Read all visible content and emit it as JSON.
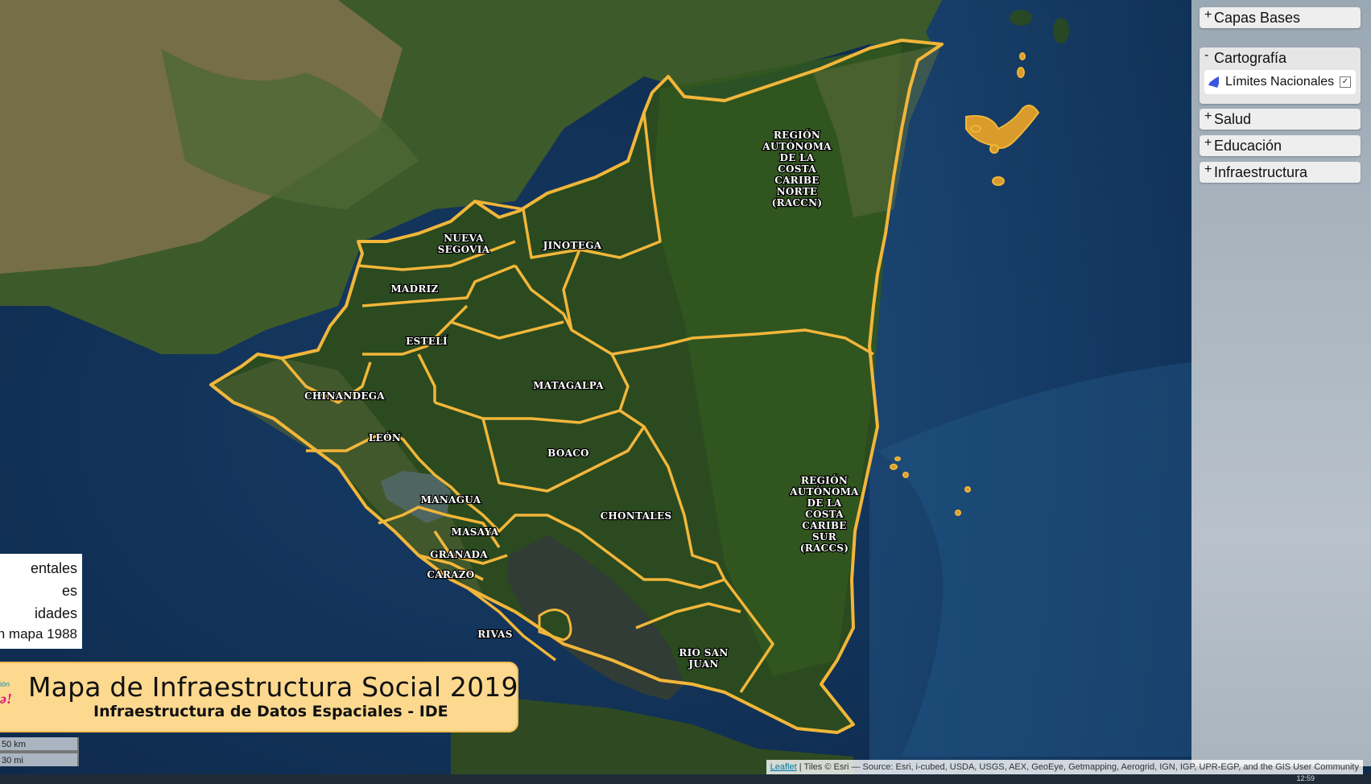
{
  "map": {
    "departments": [
      {
        "id": "raccn",
        "lines": [
          "REGIÓN",
          "AUTÓNOMA",
          "DE LA",
          "COSTA",
          "CARIBE",
          "NORTE",
          "(RACCN)"
        ]
      },
      {
        "id": "raccs",
        "lines": [
          "REGIÓN",
          "AUTÓNOMA",
          "DE LA",
          "COSTA",
          "CARIBE",
          "SUR",
          "(RACCS)"
        ]
      },
      {
        "id": "nueva-segovia",
        "lines": [
          "NUEVA",
          "SEGOVIA"
        ]
      },
      {
        "id": "jinotega",
        "lines": [
          "JINOTEGA"
        ]
      },
      {
        "id": "madriz",
        "lines": [
          "MADRIZ"
        ]
      },
      {
        "id": "esteli",
        "lines": [
          "ESTELÍ"
        ]
      },
      {
        "id": "chinandega",
        "lines": [
          "CHINANDEGA"
        ]
      },
      {
        "id": "matagalpa",
        "lines": [
          "MATAGALPA"
        ]
      },
      {
        "id": "leon",
        "lines": [
          "LEÓN"
        ]
      },
      {
        "id": "boaco",
        "lines": [
          "BOACO"
        ]
      },
      {
        "id": "managua",
        "lines": [
          "MANAGUA"
        ]
      },
      {
        "id": "chontales",
        "lines": [
          "CHONTALES"
        ]
      },
      {
        "id": "masaya",
        "lines": [
          "MASAYA"
        ]
      },
      {
        "id": "granada",
        "lines": [
          "GRANADA"
        ]
      },
      {
        "id": "carazo",
        "lines": [
          "CARAZO"
        ]
      },
      {
        "id": "rivas",
        "lines": [
          "RIVAS"
        ]
      },
      {
        "id": "rio-san-juan",
        "lines": [
          "RIO SAN",
          "JUAN"
        ]
      }
    ],
    "boundary_color": "#f2b63a",
    "label_color": "#ffffff"
  },
  "layers_panel": {
    "groups": [
      {
        "label": "Capas Bases",
        "sign": "+",
        "open": false
      },
      {
        "label": "Cartografía",
        "sign": "-",
        "open": true,
        "items": [
          {
            "label": "Límites Nacionales",
            "checked": true,
            "icon": "boundary-layer-icon"
          }
        ]
      },
      {
        "label": "Salud",
        "sign": "+",
        "open": false
      },
      {
        "label": "Educación",
        "sign": "+",
        "open": false
      },
      {
        "label": "Infraestructura",
        "sign": "+",
        "open": false
      }
    ]
  },
  "legend": {
    "rows": [
      "entales",
      "es",
      "idades",
      "n mapa 1988"
    ]
  },
  "title": {
    "main": "Mapa de Infraestructura Social 2019",
    "subtitle": "Infraestructura de Datos Espaciales - IDE",
    "logo_fragment_small": "ión",
    "logo_fragment_big": "ǝ!"
  },
  "scale": {
    "km": "50 km",
    "mi": "30 mi"
  },
  "attribution": {
    "link": "Leaflet",
    "text": " | Tiles © Esri — Source: Esri, i-cubed, USDA, USGS, AEX, GeoEye, Getmapping, Aerogrid, IGN, IGP, UPR-EGP, and the GIS User Community"
  },
  "taskbar": {
    "clock": "12:59"
  }
}
